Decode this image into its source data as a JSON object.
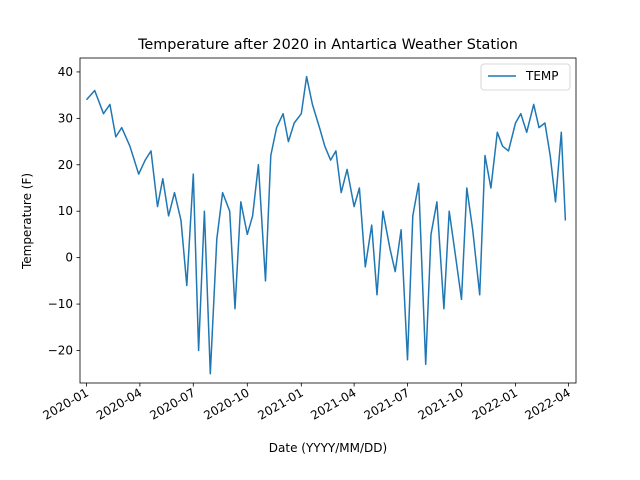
{
  "chart_data": {
    "type": "line",
    "title": "Temperature after 2020 in Antartica Weather Station",
    "xlabel": "Date (YYYY/MM/DD)",
    "ylabel": "Temperature (F)",
    "xlim": [
      "2019-12-21",
      "2022-04-14"
    ],
    "ylim": [
      -27,
      43
    ],
    "x_ticks": [
      "2020-01",
      "2020-04",
      "2020-07",
      "2020-10",
      "2021-01",
      "2021-04",
      "2021-07",
      "2021-10",
      "2022-01",
      "2022-04"
    ],
    "y_ticks": [
      -20,
      -10,
      0,
      10,
      20,
      30,
      40
    ],
    "grid": false,
    "legend": "upper right",
    "series": [
      {
        "name": "TEMP",
        "color": "#1f77b4",
        "x": [
          "2020-01-01",
          "2020-01-15",
          "2020-01-30",
          "2020-02-10",
          "2020-02-20",
          "2020-03-01",
          "2020-03-15",
          "2020-03-30",
          "2020-04-10",
          "2020-04-20",
          "2020-05-01",
          "2020-05-10",
          "2020-05-20",
          "2020-05-30",
          "2020-06-10",
          "2020-06-20",
          "2020-07-01",
          "2020-07-10",
          "2020-07-20",
          "2020-07-30",
          "2020-08-10",
          "2020-08-20",
          "2020-09-01",
          "2020-09-10",
          "2020-09-20",
          "2020-10-01",
          "2020-10-10",
          "2020-10-20",
          "2020-11-01",
          "2020-11-10",
          "2020-11-20",
          "2020-12-01",
          "2020-12-10",
          "2020-12-20",
          "2021-01-01",
          "2021-01-10",
          "2021-01-20",
          "2021-02-01",
          "2021-02-10",
          "2021-02-20",
          "2021-03-01",
          "2021-03-10",
          "2021-03-20",
          "2021-04-01",
          "2021-04-10",
          "2021-04-20",
          "2021-05-01",
          "2021-05-10",
          "2021-05-20",
          "2021-06-01",
          "2021-06-10",
          "2021-06-20",
          "2021-07-01",
          "2021-07-10",
          "2021-07-20",
          "2021-08-01",
          "2021-08-10",
          "2021-08-20",
          "2021-09-01",
          "2021-09-10",
          "2021-09-20",
          "2021-10-01",
          "2021-10-10",
          "2021-10-20",
          "2021-11-01",
          "2021-11-10",
          "2021-11-20",
          "2021-12-01",
          "2021-12-10",
          "2021-12-20",
          "2022-01-01",
          "2022-01-10",
          "2022-01-20",
          "2022-02-01",
          "2022-02-10",
          "2022-02-20",
          "2022-03-01",
          "2022-03-10",
          "2022-03-20",
          "2022-03-27"
        ],
        "values": [
          34,
          36,
          31,
          33,
          26,
          28,
          24,
          18,
          21,
          23,
          11,
          17,
          9,
          14,
          8,
          -6,
          18,
          -20,
          10,
          -25,
          4,
          14,
          10,
          -11,
          12,
          5,
          9,
          20,
          -5,
          22,
          28,
          31,
          25,
          29,
          31,
          39,
          33,
          28,
          24,
          21,
          23,
          14,
          19,
          11,
          15,
          -2,
          7,
          -8,
          10,
          2,
          -3,
          6,
          -22,
          9,
          16,
          -23,
          5,
          12,
          -11,
          10,
          1,
          -9,
          15,
          6,
          -8,
          22,
          15,
          27,
          24,
          23,
          29,
          31,
          27,
          33,
          28,
          29,
          22,
          12,
          27,
          8
        ]
      }
    ]
  }
}
